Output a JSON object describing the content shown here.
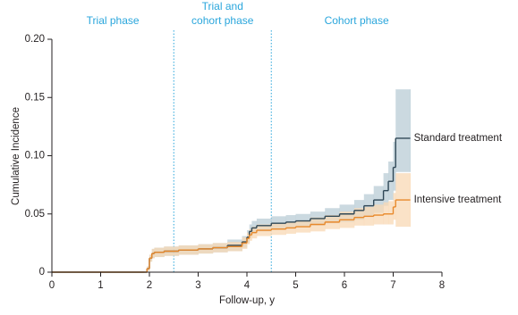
{
  "chart_data": {
    "type": "step",
    "xlabel": "Follow-up, y",
    "ylabel": "Cumulative Incidence",
    "xlim": [
      0,
      8
    ],
    "xticks": [
      0,
      1,
      2,
      3,
      4,
      5,
      6,
      7,
      8
    ],
    "ylim": [
      0,
      0.2
    ],
    "yticks": [
      0,
      0.05,
      {
        "value": 0.1,
        "label": "0.10"
      },
      0.15,
      {
        "value": 0.2,
        "label": "0.20"
      }
    ],
    "phase_dividers": [
      2.5,
      4.5
    ],
    "phase_color": "#2aa6dc",
    "phases": [
      [
        "Trial phase"
      ],
      [
        "Trial and",
        "cohort phase"
      ],
      [
        "Cohort phase"
      ]
    ],
    "x": [
      0,
      0.6,
      1.9,
      1.95,
      2.0,
      2.05,
      2.1,
      2.3,
      2.6,
      3.0,
      3.3,
      3.6,
      3.9,
      4.0,
      4.05,
      4.1,
      4.2,
      4.5,
      4.8,
      5.0,
      5.3,
      5.6,
      5.9,
      6.2,
      6.4,
      6.6,
      6.8,
      6.9,
      7.0,
      7.05,
      7.35
    ],
    "series": [
      {
        "name": "Standard treatment",
        "color": "#2f4756",
        "band_color": "#b9ccd5",
        "values": [
          0,
          0,
          0,
          0.003,
          0.012,
          0.016,
          0.017,
          0.018,
          0.019,
          0.02,
          0.021,
          0.023,
          0.026,
          0.03,
          0.035,
          0.038,
          0.04,
          0.042,
          0.043,
          0.044,
          0.046,
          0.048,
          0.05,
          0.053,
          0.057,
          0.062,
          0.07,
          0.078,
          0.09,
          0.115,
          0.115
        ],
        "lower": [
          0,
          0,
          0,
          0.001,
          0.009,
          0.012,
          0.013,
          0.014,
          0.015,
          0.016,
          0.017,
          0.018,
          0.021,
          0.025,
          0.03,
          0.033,
          0.035,
          0.037,
          0.038,
          0.039,
          0.04,
          0.042,
          0.043,
          0.045,
          0.048,
          0.051,
          0.057,
          0.062,
          0.07,
          0.086,
          0.086
        ],
        "upper": [
          0,
          0,
          0,
          0.005,
          0.015,
          0.02,
          0.021,
          0.022,
          0.023,
          0.024,
          0.025,
          0.028,
          0.031,
          0.036,
          0.041,
          0.044,
          0.046,
          0.048,
          0.049,
          0.05,
          0.052,
          0.055,
          0.058,
          0.062,
          0.067,
          0.074,
          0.085,
          0.095,
          0.112,
          0.157,
          0.157
        ]
      },
      {
        "name": "Intensive treatment",
        "color": "#e8892b",
        "band_color": "#f8d8b4",
        "values": [
          0,
          0,
          0,
          0.003,
          0.012,
          0.016,
          0.017,
          0.018,
          0.019,
          0.02,
          0.021,
          0.022,
          0.025,
          0.029,
          0.032,
          0.034,
          0.036,
          0.037,
          0.038,
          0.039,
          0.041,
          0.043,
          0.045,
          0.047,
          0.048,
          0.049,
          0.05,
          0.05,
          0.056,
          0.062,
          0.062
        ],
        "lower": [
          0,
          0,
          0,
          0.001,
          0.009,
          0.012,
          0.013,
          0.014,
          0.015,
          0.016,
          0.017,
          0.018,
          0.02,
          0.024,
          0.027,
          0.029,
          0.031,
          0.032,
          0.033,
          0.034,
          0.035,
          0.037,
          0.038,
          0.04,
          0.04,
          0.041,
          0.041,
          0.041,
          0.045,
          0.039,
          0.039
        ],
        "upper": [
          0,
          0,
          0,
          0.005,
          0.015,
          0.02,
          0.021,
          0.022,
          0.023,
          0.024,
          0.025,
          0.026,
          0.03,
          0.034,
          0.037,
          0.039,
          0.041,
          0.042,
          0.043,
          0.044,
          0.047,
          0.049,
          0.052,
          0.055,
          0.056,
          0.058,
          0.06,
          0.061,
          0.068,
          0.085,
          0.085
        ]
      }
    ]
  }
}
